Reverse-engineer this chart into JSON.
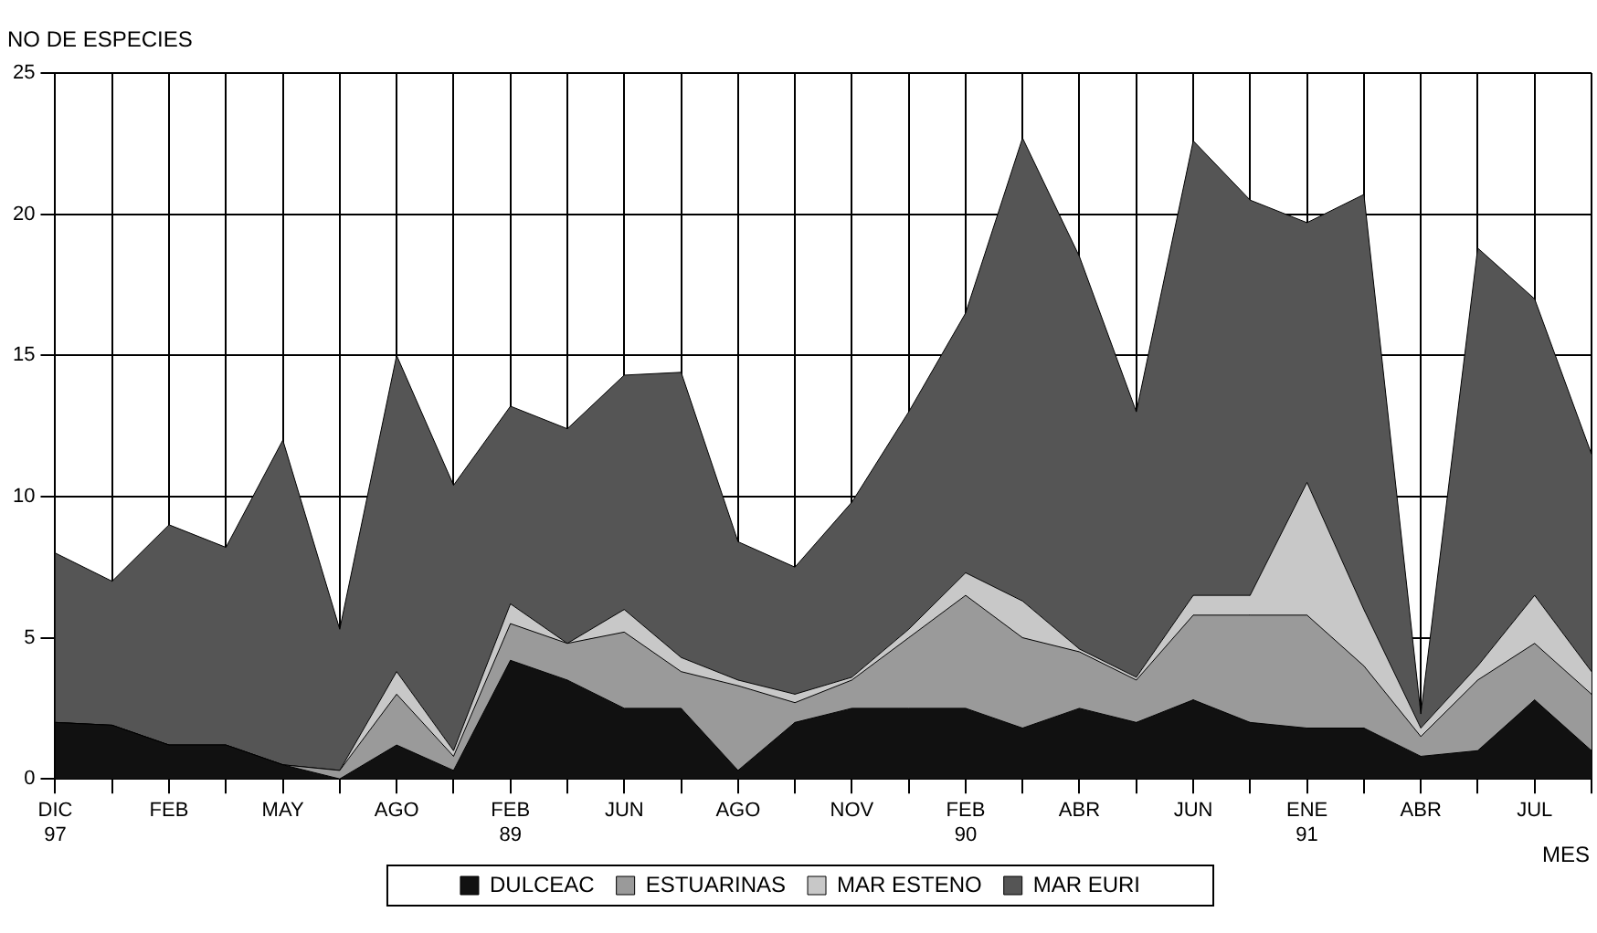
{
  "chart_data": {
    "type": "area",
    "stacked": true,
    "ylabel": "NO DE ESPECIES",
    "xlabel": "MES",
    "categories": [
      "DIC\n97",
      null,
      "FEB",
      null,
      "MAY",
      null,
      "AGO",
      null,
      "FEB\n89",
      null,
      "JUN",
      null,
      "AGO",
      null,
      "NOV",
      null,
      "FEB\n90",
      null,
      "ABR",
      null,
      "JUN",
      null,
      "ENE\n91",
      null,
      "ABR",
      null,
      "JUL",
      null
    ],
    "series": [
      {
        "name": "DULCEAC",
        "color": "#111111",
        "values": [
          2,
          1.9,
          1.2,
          1.2,
          0.5,
          0,
          1.2,
          0.3,
          4.2,
          3.5,
          2.5,
          2.5,
          0.3,
          2,
          2.5,
          2.5,
          2.5,
          1.8,
          2.5,
          2,
          2.8,
          2,
          1.8,
          1.8,
          0.8,
          1,
          2.8,
          1
        ]
      },
      {
        "name": "ESTUARINAS",
        "color": "#9a9a9a",
        "values": [
          0,
          0,
          0,
          0,
          0,
          0.3,
          1.8,
          0.5,
          1.3,
          1.3,
          2.7,
          1.3,
          3,
          0.7,
          1,
          2.5,
          4,
          3.2,
          2,
          1.5,
          3,
          3.8,
          4,
          2.2,
          0.7,
          2.5,
          2,
          2
        ]
      },
      {
        "name": "MAR ESTENO",
        "color": "#c8c8c8",
        "values": [
          0,
          0,
          0,
          0,
          0,
          0,
          0.8,
          0.2,
          0.7,
          0,
          0.8,
          0.5,
          0.2,
          0.3,
          0.1,
          0.3,
          0.8,
          1.3,
          0.1,
          0.1,
          0.7,
          0.7,
          4.7,
          2,
          0.3,
          0.5,
          1.7,
          0.8
        ]
      },
      {
        "name": "MAR EURI",
        "color": "#555555",
        "values": [
          6,
          5.1,
          7.8,
          7,
          11.5,
          5,
          11.2,
          9.4,
          7,
          7.6,
          8.3,
          10.1,
          4.9,
          4.5,
          6.2,
          7.7,
          9.2,
          16.4,
          13.9,
          9.4,
          16.1,
          14,
          9.2,
          14.7,
          0.5,
          14.8,
          10.5,
          7.7
        ]
      }
    ],
    "ylim": [
      0,
      25
    ],
    "yticks": [
      0,
      5,
      10,
      15,
      20,
      25
    ],
    "grid": true,
    "legend": "bottom"
  }
}
